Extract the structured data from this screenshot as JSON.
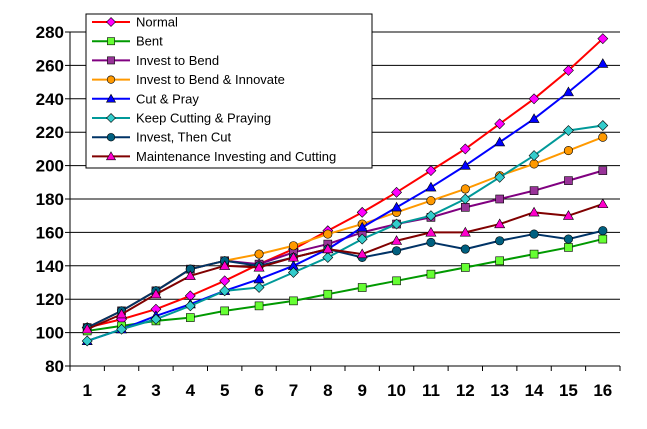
{
  "chart_data": {
    "type": "line",
    "title": "",
    "xlabel": "",
    "ylabel": "",
    "x": [
      1,
      2,
      3,
      4,
      5,
      6,
      7,
      8,
      9,
      10,
      11,
      12,
      13,
      14,
      15,
      16
    ],
    "ylim": [
      80,
      280
    ],
    "yticks": [
      80,
      100,
      120,
      140,
      160,
      180,
      200,
      220,
      240,
      260,
      280
    ],
    "grid": "horizontal",
    "legend_position": "top-left",
    "series": [
      {
        "name": "Normal",
        "color": "#ff0000",
        "marker_color": "#ff00ff",
        "marker": "diamond",
        "values": [
          103,
          108,
          114,
          122,
          131,
          141,
          150,
          161,
          172,
          184,
          197,
          210,
          225,
          240,
          257,
          276
        ]
      },
      {
        "name": "Bent",
        "color": "#009900",
        "marker_color": "#66ff33",
        "marker": "square",
        "values": [
          101,
          104,
          107,
          109,
          113,
          116,
          119,
          123,
          127,
          131,
          135,
          139,
          143,
          147,
          151,
          156
        ]
      },
      {
        "name": "Invest to Bend",
        "color": "#800080",
        "marker_color": "#993399",
        "marker": "square",
        "values": [
          103,
          113,
          125,
          138,
          143,
          141,
          148,
          153,
          160,
          165,
          169,
          175,
          180,
          185,
          191,
          197
        ]
      },
      {
        "name": "Invest to Bend & Innovate",
        "color": "#ff9900",
        "marker_color": "#ff9900",
        "marker": "circle",
        "values": [
          103,
          113,
          125,
          138,
          143,
          147,
          152,
          159,
          165,
          172,
          179,
          186,
          194,
          201,
          209,
          217
        ]
      },
      {
        "name": "Cut & Pray",
        "color": "#0000ff",
        "marker_color": "#0000ff",
        "marker": "triangle",
        "values": [
          95,
          102,
          110,
          117,
          125,
          132,
          140,
          150,
          163,
          175,
          187,
          200,
          214,
          228,
          244,
          261
        ]
      },
      {
        "name": "Keep Cutting & Praying",
        "color": "#009999",
        "marker_color": "#33cccc",
        "marker": "diamond",
        "values": [
          95,
          102,
          108,
          116,
          125,
          127,
          136,
          145,
          156,
          165,
          170,
          180,
          193,
          206,
          221,
          224
        ]
      },
      {
        "name": "Invest, Then Cut",
        "color": "#003366",
        "marker_color": "#006080",
        "marker": "circle",
        "values": [
          103,
          113,
          125,
          138,
          143,
          140,
          145,
          150,
          145,
          149,
          154,
          150,
          155,
          159,
          156,
          161
        ]
      },
      {
        "name": "Maintenance Investing and Cutting",
        "color": "#800000",
        "marker_color": "#ff00cc",
        "marker": "triangle",
        "values": [
          102,
          111,
          123,
          134,
          140,
          139,
          145,
          150,
          147,
          155,
          160,
          160,
          165,
          172,
          170,
          177
        ]
      }
    ]
  }
}
